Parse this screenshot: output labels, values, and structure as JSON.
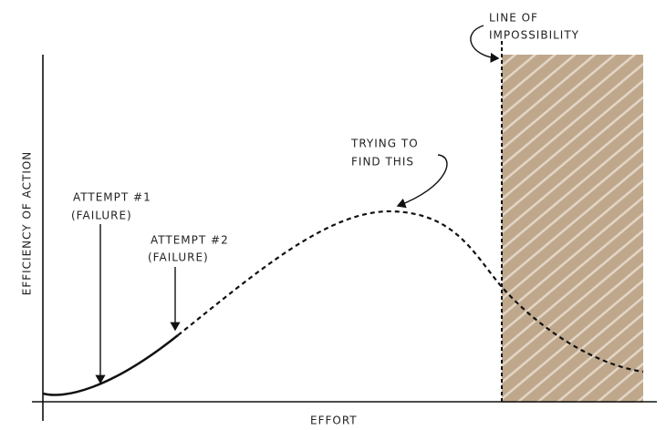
{
  "axes": {
    "x_label": "EFFORT",
    "y_label": "EFFICIENCY OF ACTION"
  },
  "annotations": [
    {
      "lines": [
        "ATTEMPT #1",
        "(FAILURE)"
      ]
    },
    {
      "lines": [
        "ATTEMPT #2",
        "(FAILURE)"
      ]
    },
    {
      "lines": [
        "TRYING TO",
        "FIND THIS"
      ]
    },
    {
      "lines": [
        "LINE OF",
        "IMPOSSIBILITY"
      ]
    }
  ]
}
